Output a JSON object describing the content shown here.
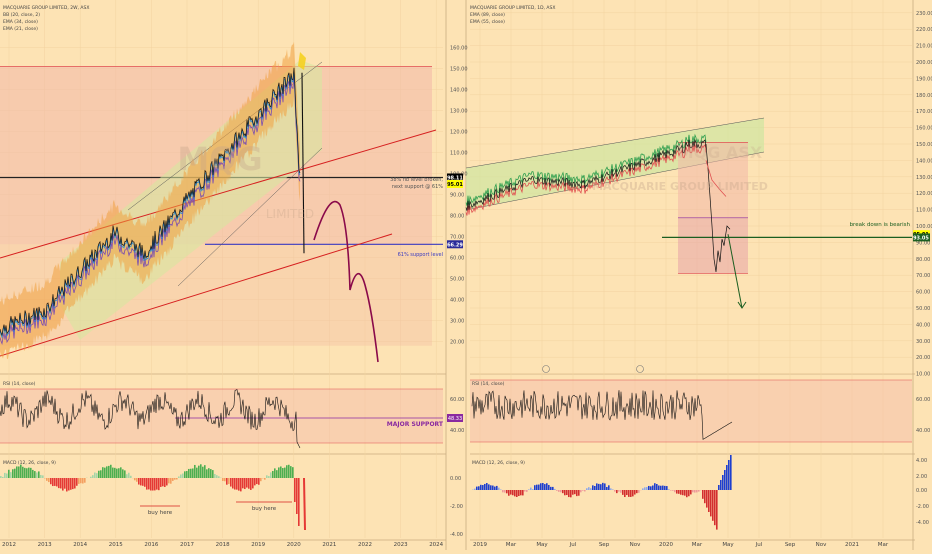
{
  "background_color": "#fde3b4",
  "left": {
    "header": [
      "MACQUARIE GROUP LIMITED, 2W, ASX",
      "BB (20, close, 2)",
      "EMA (34, close)",
      "EMA (21, close)"
    ],
    "watermark": "MQG",
    "watermark2": "LIMITED",
    "price_scale": [
      "160.00",
      "150.00",
      "140.00",
      "130.00",
      "120.00",
      "110.00",
      "100.00",
      "90.00",
      "80.00",
      "70.00",
      "60.00",
      "50.00",
      "40.00",
      "30.00",
      "20.00"
    ],
    "price_tags": [
      {
        "label": "98.11",
        "value": 98.11,
        "color": "#000000",
        "text_color": "#ffffff"
      },
      {
        "label": "95.01",
        "value": 95.01,
        "color": "#ffff00",
        "text_color": "#000000"
      },
      {
        "label": "66.29",
        "value": 66.29,
        "color": "#2a2a9a",
        "text_color": "#ffffff"
      }
    ],
    "annotations": {
      "fib_line1": "38% fib level broken,",
      "fib_line2": "next support @ 61%",
      "support": "61% support level",
      "rsi_support": "MAJOR SUPPORT",
      "buy1": "buy here",
      "buy2": "buy here"
    },
    "rsi_title": "RSI (14, close)",
    "rsi_scale": [
      "60.00",
      "40.00"
    ],
    "rsi_tag": "48.33",
    "macd_title": "MACD (12, 26, close, 9)",
    "macd_scale": [
      "0.00",
      "-2.00",
      "-4.00"
    ],
    "time_axis": [
      "2012",
      "2013",
      "2014",
      "2015",
      "2016",
      "2017",
      "2018",
      "2019",
      "2020",
      "2021",
      "2022",
      "2023",
      "2024"
    ]
  },
  "right": {
    "header": [
      "MACQUARIE GROUP LIMITED, 1D, ASX",
      "EMA (89, close)",
      "EMA (55, close)"
    ],
    "watermark": "MACQUARIE GROUP LIMITED",
    "watermark2": "MQG ASX",
    "price_scale": [
      "230.00",
      "220.00",
      "210.00",
      "200.00",
      "190.00",
      "180.00",
      "170.00",
      "160.00",
      "150.00",
      "140.00",
      "130.00",
      "120.00",
      "110.00",
      "100.00",
      "90.00",
      "80.00",
      "70.00",
      "60.00",
      "50.00",
      "40.00",
      "30.00",
      "20.00",
      "10.00"
    ],
    "price_tags": [
      {
        "label": "95.01",
        "value": 95.01,
        "color": "#ffff00",
        "text_color": "#000000"
      },
      {
        "label": "93.05",
        "value": 93.05,
        "color": "#1b5e20",
        "text_color": "#ffffff"
      }
    ],
    "annotations": {
      "breakdown": "break down is bearish"
    },
    "rsi_title": "RSI (14, close)",
    "rsi_scale": [
      "60.00",
      "40.00"
    ],
    "macd_title": "MACD (12, 26, close, 9)",
    "macd_scale": [
      "4.00",
      "2.00",
      "0.00",
      "-2.00",
      "-4.00"
    ],
    "time_axis": [
      "2019",
      "Mar",
      "May",
      "Jul",
      "Sep",
      "Nov",
      "2020",
      "Mar",
      "May",
      "Jul",
      "Sep",
      "Nov",
      "2021",
      "Mar"
    ]
  },
  "chart_data": [
    {
      "type": "line",
      "title": "MACQUARIE GROUP LIMITED, 2W, ASX",
      "x": [
        2012,
        2012.5,
        2013,
        2013.5,
        2014,
        2014.5,
        2015,
        2015.3,
        2015.6,
        2016,
        2016.5,
        2017,
        2017.5,
        2018,
        2018.5,
        2019,
        2019.5,
        2019.9,
        2020.05,
        2020.15,
        2020.2,
        2020.3
      ],
      "series": [
        {
          "name": "close",
          "values": [
            27,
            28,
            33,
            40,
            47,
            58,
            65,
            76,
            68,
            60,
            66,
            80,
            84,
            96,
            110,
            120,
            124,
            132,
            148,
            100,
            85,
            95
          ]
        }
      ],
      "ylim": [
        10,
        165
      ],
      "xlim": [
        2012,
        2024.3
      ],
      "reference_levels": [
        151,
        98.11,
        66.29
      ]
    },
    {
      "type": "line",
      "title": "MACQUARIE GROUP LIMITED, 1D, ASX",
      "x": [
        "2019-01",
        "2019-03",
        "2019-05",
        "2019-07",
        "2019-09",
        "2019-11",
        "2020-01",
        "2020-02",
        "2020-03",
        "2020-03-20",
        "2020-04",
        "2020-04-20"
      ],
      "series": [
        {
          "name": "close",
          "values": [
            114,
            123,
            129,
            126,
            131,
            134,
            140,
            151,
            100,
            70,
            88,
            95
          ]
        }
      ],
      "ylim": [
        5,
        235
      ],
      "reference_levels": [
        151,
        105,
        93.05,
        71
      ]
    }
  ]
}
